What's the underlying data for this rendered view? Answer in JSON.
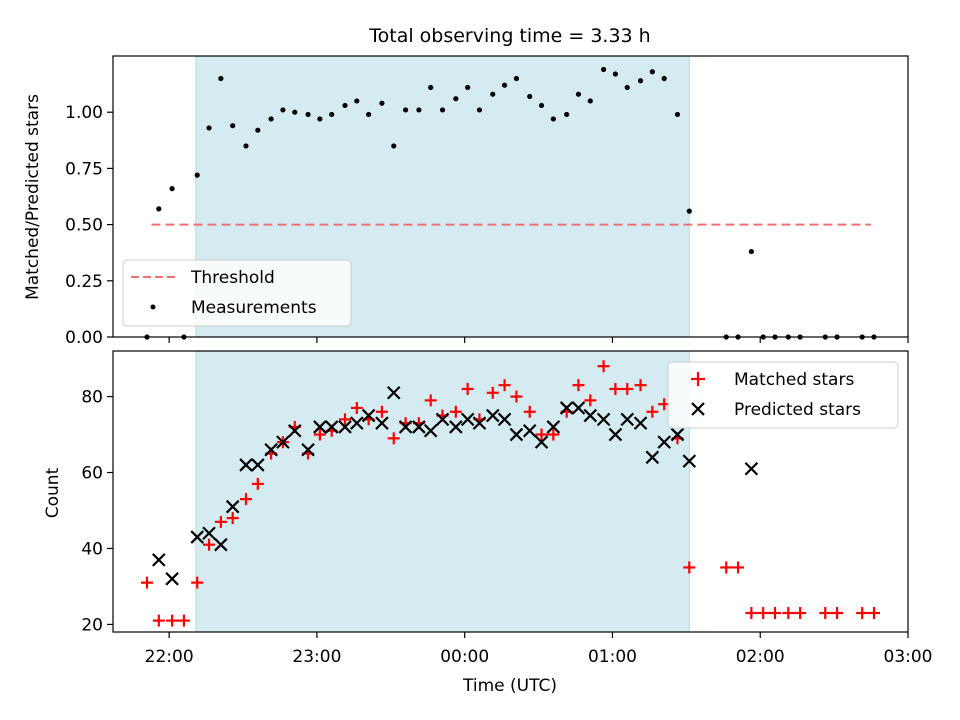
{
  "chart_data": {
    "title": "Total observing time = 3.33 h",
    "xlabel": "Time (UTC)",
    "x_ticks": [
      "22:00",
      "23:00",
      "00:00",
      "01:00",
      "02:00",
      "03:00"
    ],
    "x_tick_hours": [
      22,
      23,
      24,
      25,
      26,
      27
    ],
    "xlim": [
      21.62,
      27.0
    ],
    "observing_window": [
      22.18,
      25.52
    ],
    "colors": {
      "band": "#d4ebf1",
      "band_edge": "#b6dbe6",
      "threshold": "#f07070",
      "matched": "#ff0000",
      "predicted": "#000000",
      "measurement": "#000000"
    },
    "panels": [
      {
        "type": "scatter",
        "ylabel": "Matched/Predicted stars",
        "ylim": [
          0,
          1.25
        ],
        "y_ticks": [
          "0.00",
          "0.25",
          "0.50",
          "0.75",
          "1.00"
        ],
        "y_tick_values": [
          0,
          0.25,
          0.5,
          0.75,
          1.0
        ],
        "legend": {
          "position": "lower-left",
          "entries": [
            "Threshold",
            "Measurements"
          ]
        },
        "series": [
          {
            "name": "Threshold",
            "style": "dashed-line",
            "x": [
              21.88,
              26.75
            ],
            "y": [
              0.5,
              0.5
            ]
          },
          {
            "name": "Measurements",
            "style": "dots",
            "x": [
              21.85,
              21.93,
              22.02,
              22.1,
              22.19,
              22.27,
              22.35,
              22.43,
              22.52,
              22.6,
              22.69,
              22.77,
              22.85,
              22.94,
              23.02,
              23.1,
              23.19,
              23.27,
              23.35,
              23.44,
              23.52,
              23.6,
              23.69,
              23.77,
              23.85,
              23.94,
              24.02,
              24.1,
              24.19,
              24.27,
              24.35,
              24.44,
              24.52,
              24.6,
              24.69,
              24.77,
              24.85,
              24.94,
              25.02,
              25.1,
              25.19,
              25.27,
              25.35,
              25.44,
              25.52,
              25.77,
              25.85,
              25.94,
              26.02,
              26.1,
              26.19,
              26.27,
              26.44,
              26.52,
              26.69,
              26.77
            ],
            "y": [
              0.0,
              0.57,
              0.66,
              0.0,
              0.72,
              0.93,
              1.15,
              0.94,
              0.85,
              0.92,
              0.97,
              1.01,
              1.0,
              0.99,
              0.97,
              0.99,
              1.03,
              1.05,
              0.99,
              1.04,
              0.85,
              1.01,
              1.01,
              1.11,
              1.01,
              1.06,
              1.11,
              1.01,
              1.08,
              1.12,
              1.15,
              1.07,
              1.03,
              0.97,
              0.99,
              1.08,
              1.05,
              1.19,
              1.17,
              1.11,
              1.14,
              1.18,
              1.15,
              0.99,
              0.56,
              0.0,
              0.0,
              0.38,
              0.0,
              0.0,
              0.0,
              0.0,
              0.0,
              0.0,
              0.0,
              0.0
            ]
          }
        ]
      },
      {
        "type": "scatter",
        "ylabel": "Count",
        "ylim": [
          18,
          92
        ],
        "y_ticks": [
          "20",
          "40",
          "60",
          "80"
        ],
        "y_tick_values": [
          20,
          40,
          60,
          80
        ],
        "legend": {
          "position": "top-right",
          "entries": [
            "Matched stars",
            "Predicted stars"
          ]
        },
        "series": [
          {
            "name": "Matched stars",
            "style": "plus",
            "x": [
              21.85,
              21.93,
              22.02,
              22.1,
              22.19,
              22.27,
              22.35,
              22.43,
              22.52,
              22.6,
              22.69,
              22.77,
              22.85,
              22.94,
              23.02,
              23.1,
              23.19,
              23.27,
              23.35,
              23.44,
              23.52,
              23.6,
              23.69,
              23.77,
              23.85,
              23.94,
              24.02,
              24.1,
              24.19,
              24.27,
              24.35,
              24.44,
              24.52,
              24.6,
              24.69,
              24.77,
              24.85,
              24.94,
              25.02,
              25.1,
              25.19,
              25.27,
              25.35,
              25.44,
              25.52,
              25.77,
              25.85,
              25.94,
              26.02,
              26.1,
              26.19,
              26.27,
              26.44,
              26.52,
              26.69,
              26.77
            ],
            "y": [
              31,
              21,
              21,
              21,
              31,
              41,
              47,
              48,
              53,
              57,
              65,
              68,
              72,
              65,
              70,
              71,
              74,
              77,
              74,
              76,
              69,
              73,
              73,
              79,
              75,
              76,
              82,
              74,
              81,
              83,
              80,
              76,
              70,
              70,
              76,
              83,
              79,
              88,
              82,
              82,
              83,
              76,
              78,
              69,
              35,
              35,
              35,
              23,
              23,
              23,
              23,
              23,
              23,
              23,
              23,
              23
            ]
          },
          {
            "name": "Predicted stars",
            "style": "x",
            "x": [
              21.93,
              22.02,
              22.19,
              22.27,
              22.35,
              22.43,
              22.52,
              22.6,
              22.69,
              22.77,
              22.85,
              22.94,
              23.02,
              23.1,
              23.19,
              23.27,
              23.35,
              23.44,
              23.52,
              23.6,
              23.69,
              23.77,
              23.85,
              23.94,
              24.02,
              24.1,
              24.19,
              24.27,
              24.35,
              24.44,
              24.52,
              24.6,
              24.69,
              24.77,
              24.85,
              24.94,
              25.02,
              25.1,
              25.19,
              25.27,
              25.35,
              25.44,
              25.52,
              25.94
            ],
            "y": [
              37,
              32,
              43,
              44,
              41,
              51,
              62,
              62,
              66,
              68,
              71,
              66,
              72,
              72,
              72,
              73,
              75,
              73,
              81,
              72,
              72,
              71,
              74,
              72,
              74,
              73,
              75,
              74,
              70,
              71,
              68,
              72,
              77,
              77,
              75,
              74,
              70,
              74,
              73,
              64,
              68,
              70,
              63,
              61
            ]
          }
        ]
      }
    ]
  }
}
